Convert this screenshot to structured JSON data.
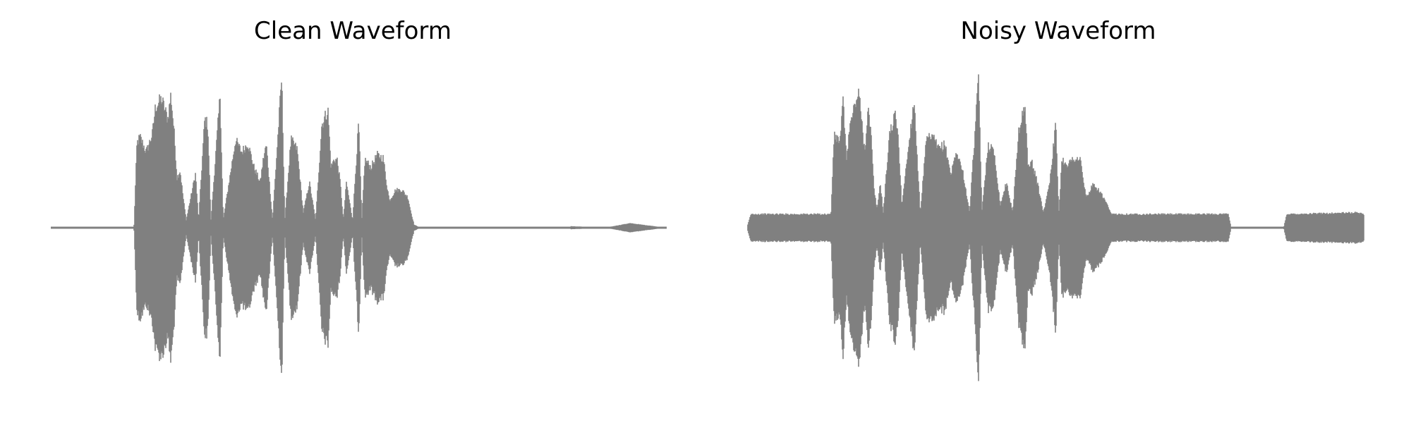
{
  "colors": {
    "waveform": "#808080",
    "background": "#ffffff"
  },
  "chart_data": [
    {
      "type": "line",
      "title": "Clean Waveform",
      "xlabel": "",
      "ylabel": "",
      "axes": "off",
      "grid": false,
      "ylim": [
        -1.0,
        1.0
      ],
      "xlim": [
        0.0,
        1.0
      ],
      "envelope": [
        {
          "x": 0.0,
          "y": 0.0
        },
        {
          "x": 0.135,
          "y": 0.0
        },
        {
          "x": 0.14,
          "y": 0.56
        },
        {
          "x": 0.145,
          "y": 0.6
        },
        {
          "x": 0.155,
          "y": 0.5
        },
        {
          "x": 0.165,
          "y": 0.62
        },
        {
          "x": 0.17,
          "y": 0.8
        },
        {
          "x": 0.18,
          "y": 0.85
        },
        {
          "x": 0.19,
          "y": 0.72
        },
        {
          "x": 0.195,
          "y": 0.88
        },
        {
          "x": 0.2,
          "y": 0.65
        },
        {
          "x": 0.205,
          "y": 0.33
        },
        {
          "x": 0.21,
          "y": 0.38
        },
        {
          "x": 0.215,
          "y": 0.2
        },
        {
          "x": 0.22,
          "y": 0.05
        },
        {
          "x": 0.235,
          "y": 0.36
        },
        {
          "x": 0.24,
          "y": 0.05
        },
        {
          "x": 0.25,
          "y": 0.72
        },
        {
          "x": 0.255,
          "y": 0.68
        },
        {
          "x": 0.26,
          "y": 0.05
        },
        {
          "x": 0.275,
          "y": 0.88
        },
        {
          "x": 0.28,
          "y": 0.05
        },
        {
          "x": 0.3,
          "y": 0.58
        },
        {
          "x": 0.31,
          "y": 0.5
        },
        {
          "x": 0.32,
          "y": 0.56
        },
        {
          "x": 0.33,
          "y": 0.4
        },
        {
          "x": 0.34,
          "y": 0.3
        },
        {
          "x": 0.345,
          "y": 0.45
        },
        {
          "x": 0.35,
          "y": 0.55
        },
        {
          "x": 0.355,
          "y": 0.3
        },
        {
          "x": 0.36,
          "y": 0.05
        },
        {
          "x": 0.375,
          "y": 1.0
        },
        {
          "x": 0.38,
          "y": 0.05
        },
        {
          "x": 0.39,
          "y": 0.58
        },
        {
          "x": 0.4,
          "y": 0.52
        },
        {
          "x": 0.41,
          "y": 0.1
        },
        {
          "x": 0.42,
          "y": 0.3
        },
        {
          "x": 0.43,
          "y": 0.05
        },
        {
          "x": 0.44,
          "y": 0.68
        },
        {
          "x": 0.45,
          "y": 0.78
        },
        {
          "x": 0.455,
          "y": 0.4
        },
        {
          "x": 0.46,
          "y": 0.45
        },
        {
          "x": 0.465,
          "y": 0.45
        },
        {
          "x": 0.47,
          "y": 0.3
        },
        {
          "x": 0.475,
          "y": 0.05
        },
        {
          "x": 0.48,
          "y": 0.3
        },
        {
          "x": 0.49,
          "y": 0.05
        },
        {
          "x": 0.5,
          "y": 0.7
        },
        {
          "x": 0.505,
          "y": 0.05
        },
        {
          "x": 0.51,
          "y": 0.45
        },
        {
          "x": 0.52,
          "y": 0.4
        },
        {
          "x": 0.53,
          "y": 0.48
        },
        {
          "x": 0.54,
          "y": 0.46
        },
        {
          "x": 0.545,
          "y": 0.3
        },
        {
          "x": 0.55,
          "y": 0.18
        },
        {
          "x": 0.56,
          "y": 0.25
        },
        {
          "x": 0.57,
          "y": 0.25
        },
        {
          "x": 0.58,
          "y": 0.2
        },
        {
          "x": 0.585,
          "y": 0.1
        },
        {
          "x": 0.59,
          "y": 0.02
        },
        {
          "x": 0.6,
          "y": 0.0
        },
        {
          "x": 0.84,
          "y": 0.0
        },
        {
          "x": 0.845,
          "y": 0.01
        },
        {
          "x": 0.9,
          "y": 0.0
        },
        {
          "x": 0.94,
          "y": 0.03
        },
        {
          "x": 1.0,
          "y": 0.0
        }
      ]
    },
    {
      "type": "line",
      "title": "Noisy Waveform",
      "xlabel": "",
      "ylabel": "",
      "axes": "off",
      "grid": false,
      "ylim": [
        -1.0,
        1.0
      ],
      "xlim": [
        0.0,
        1.0
      ],
      "envelope": [
        {
          "x": 0.0,
          "y": 0.02
        },
        {
          "x": 0.005,
          "y": 0.09
        },
        {
          "x": 0.135,
          "y": 0.09
        },
        {
          "x": 0.14,
          "y": 0.6
        },
        {
          "x": 0.15,
          "y": 0.58
        },
        {
          "x": 0.155,
          "y": 0.85
        },
        {
          "x": 0.16,
          "y": 0.45
        },
        {
          "x": 0.165,
          "y": 0.65
        },
        {
          "x": 0.17,
          "y": 0.75
        },
        {
          "x": 0.18,
          "y": 0.9
        },
        {
          "x": 0.19,
          "y": 0.5
        },
        {
          "x": 0.195,
          "y": 0.8
        },
        {
          "x": 0.2,
          "y": 0.62
        },
        {
          "x": 0.205,
          "y": 0.25
        },
        {
          "x": 0.21,
          "y": 0.12
        },
        {
          "x": 0.215,
          "y": 0.3
        },
        {
          "x": 0.22,
          "y": 0.1
        },
        {
          "x": 0.23,
          "y": 0.62
        },
        {
          "x": 0.24,
          "y": 0.75
        },
        {
          "x": 0.245,
          "y": 0.55
        },
        {
          "x": 0.25,
          "y": 0.15
        },
        {
          "x": 0.27,
          "y": 0.85
        },
        {
          "x": 0.28,
          "y": 0.1
        },
        {
          "x": 0.29,
          "y": 0.58
        },
        {
          "x": 0.3,
          "y": 0.6
        },
        {
          "x": 0.31,
          "y": 0.52
        },
        {
          "x": 0.32,
          "y": 0.55
        },
        {
          "x": 0.33,
          "y": 0.35
        },
        {
          "x": 0.335,
          "y": 0.45
        },
        {
          "x": 0.34,
          "y": 0.5
        },
        {
          "x": 0.35,
          "y": 0.35
        },
        {
          "x": 0.36,
          "y": 0.1
        },
        {
          "x": 0.375,
          "y": 1.0
        },
        {
          "x": 0.38,
          "y": 0.1
        },
        {
          "x": 0.39,
          "y": 0.55
        },
        {
          "x": 0.4,
          "y": 0.5
        },
        {
          "x": 0.41,
          "y": 0.15
        },
        {
          "x": 0.42,
          "y": 0.3
        },
        {
          "x": 0.43,
          "y": 0.1
        },
        {
          "x": 0.44,
          "y": 0.65
        },
        {
          "x": 0.45,
          "y": 0.8
        },
        {
          "x": 0.455,
          "y": 0.4
        },
        {
          "x": 0.46,
          "y": 0.45
        },
        {
          "x": 0.47,
          "y": 0.3
        },
        {
          "x": 0.48,
          "y": 0.1
        },
        {
          "x": 0.49,
          "y": 0.3
        },
        {
          "x": 0.5,
          "y": 0.68
        },
        {
          "x": 0.505,
          "y": 0.1
        },
        {
          "x": 0.51,
          "y": 0.45
        },
        {
          "x": 0.52,
          "y": 0.42
        },
        {
          "x": 0.53,
          "y": 0.46
        },
        {
          "x": 0.54,
          "y": 0.45
        },
        {
          "x": 0.545,
          "y": 0.3
        },
        {
          "x": 0.55,
          "y": 0.2
        },
        {
          "x": 0.56,
          "y": 0.28
        },
        {
          "x": 0.57,
          "y": 0.25
        },
        {
          "x": 0.58,
          "y": 0.18
        },
        {
          "x": 0.59,
          "y": 0.09
        },
        {
          "x": 0.78,
          "y": 0.09
        },
        {
          "x": 0.785,
          "y": 0.0
        },
        {
          "x": 0.87,
          "y": 0.0
        },
        {
          "x": 0.875,
          "y": 0.09
        },
        {
          "x": 0.99,
          "y": 0.1
        },
        {
          "x": 1.0,
          "y": 0.09
        }
      ]
    }
  ]
}
